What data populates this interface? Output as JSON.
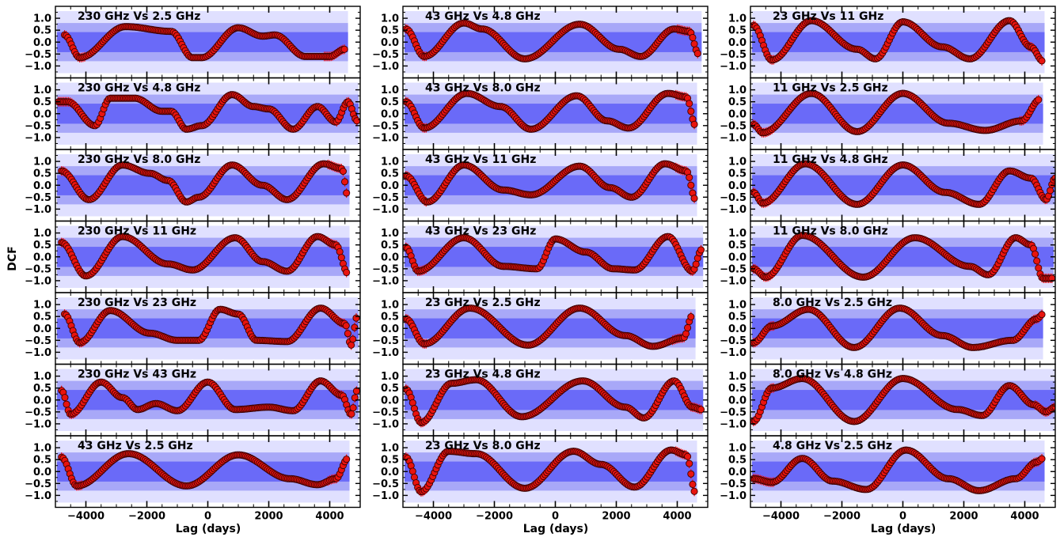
{
  "chart_data": {
    "type": "scatter",
    "ylabel": "DCF",
    "xlabel": "Lag (days)",
    "xlim": [
      -5000,
      5000
    ],
    "ylim": [
      -1.5,
      1.5
    ],
    "xticks": [
      -4000,
      -2000,
      0,
      2000,
      4000
    ],
    "xtick_labels": [
      "−4000",
      "−2000",
      "0",
      "2000",
      "4000"
    ],
    "yticks": [
      1.0,
      0.5,
      0.0,
      -0.5,
      -1.0
    ],
    "ytick_labels": [
      "1.0",
      "0.5",
      "0.0",
      "−0.5",
      "−1.0"
    ],
    "layout": "7 rows × 3 columns",
    "colors": {
      "marker_fill": "#e8140f",
      "marker_edge": "#3a0000",
      "errorbar": "#ff0000",
      "band_outer": "#e0e0ff",
      "band_middle": "#a8a8f8",
      "band_inner": "#6a6af8"
    },
    "panels": [
      {
        "title": "230 GHz Vs 2.5 GHz",
        "peaks": [
          [
            -4700,
            0.3
          ],
          [
            -4200,
            -0.65
          ],
          [
            -2700,
            0.65
          ],
          [
            -1200,
            0.45
          ],
          [
            -500,
            -0.65
          ],
          [
            -200,
            -0.65
          ],
          [
            1000,
            0.6
          ],
          [
            1800,
            0.25
          ],
          [
            2200,
            0.3
          ],
          [
            3200,
            -0.6
          ],
          [
            4000,
            -0.6
          ],
          [
            4500,
            -0.3
          ]
        ],
        "xmax": 4600
      },
      {
        "title": "230 GHz Vs 4.8 GHz",
        "peaks": [
          [
            -4900,
            0.5
          ],
          [
            -4600,
            0.5
          ],
          [
            -3700,
            -0.5
          ],
          [
            -3200,
            0.65
          ],
          [
            -2400,
            0.65
          ],
          [
            -1500,
            0.1
          ],
          [
            -1200,
            0.1
          ],
          [
            -700,
            -0.65
          ],
          [
            -200,
            -0.5
          ],
          [
            800,
            0.8
          ],
          [
            1500,
            0.3
          ],
          [
            2000,
            0.2
          ],
          [
            2800,
            -0.65
          ],
          [
            3600,
            0.3
          ],
          [
            4200,
            -0.35
          ],
          [
            4600,
            0.5
          ],
          [
            4900,
            -0.3
          ]
        ],
        "xmax": 4950
      },
      {
        "title": "230 GHz Vs 8.0 GHz",
        "peaks": [
          [
            -4800,
            0.6
          ],
          [
            -3900,
            -0.6
          ],
          [
            -2800,
            0.85
          ],
          [
            -1900,
            0.5
          ],
          [
            -1300,
            0.2
          ],
          [
            -700,
            -0.7
          ],
          [
            -300,
            -0.5
          ],
          [
            800,
            0.85
          ],
          [
            1800,
            0.0
          ],
          [
            2600,
            -0.6
          ],
          [
            3800,
            0.9
          ],
          [
            4400,
            0.7
          ],
          [
            4600,
            -0.5
          ]
        ],
        "xmax": 4650
      },
      {
        "title": "230 GHz Vs 11 GHz",
        "peaks": [
          [
            -4800,
            0.6
          ],
          [
            -4000,
            -0.8
          ],
          [
            -2800,
            0.85
          ],
          [
            -1300,
            -0.3
          ],
          [
            -500,
            -0.55
          ],
          [
            900,
            0.8
          ],
          [
            1800,
            -0.2
          ],
          [
            2600,
            -0.6
          ],
          [
            3600,
            0.85
          ],
          [
            4200,
            0.5
          ],
          [
            4600,
            -0.7
          ]
        ],
        "xmax": 4650
      },
      {
        "title": "230 GHz Vs 23 GHz",
        "peaks": [
          [
            -4700,
            0.6
          ],
          [
            -4200,
            -0.6
          ],
          [
            -3200,
            0.75
          ],
          [
            -1900,
            -0.2
          ],
          [
            -1000,
            -0.5
          ],
          [
            -300,
            -0.5
          ],
          [
            400,
            0.8
          ],
          [
            1000,
            0.6
          ],
          [
            1600,
            -0.5
          ],
          [
            2600,
            -0.55
          ],
          [
            3700,
            0.85
          ],
          [
            4500,
            0.2
          ],
          [
            4700,
            -0.7
          ],
          [
            4900,
            0.5
          ]
        ],
        "xmax": 4950
      },
      {
        "title": "230 GHz Vs 43 GHz",
        "peaks": [
          [
            -4800,
            0.4
          ],
          [
            -4500,
            -0.6
          ],
          [
            -3500,
            0.75
          ],
          [
            -2800,
            0.1
          ],
          [
            -2300,
            -0.4
          ],
          [
            -1700,
            -0.15
          ],
          [
            -1000,
            -0.45
          ],
          [
            0,
            0.75
          ],
          [
            900,
            -0.4
          ],
          [
            2000,
            -0.3
          ],
          [
            2800,
            -0.45
          ],
          [
            3700,
            0.8
          ],
          [
            4400,
            0.2
          ],
          [
            4700,
            -0.6
          ],
          [
            4900,
            0.4
          ]
        ],
        "xmax": 4950
      },
      {
        "title": "43 GHz Vs 2.5 GHz",
        "peaks": [
          [
            -4800,
            0.6
          ],
          [
            -4300,
            -0.6
          ],
          [
            -2600,
            0.75
          ],
          [
            -700,
            -0.6
          ],
          [
            1000,
            0.7
          ],
          [
            2700,
            -0.3
          ],
          [
            3600,
            -0.55
          ],
          [
            4200,
            -0.3
          ],
          [
            4600,
            0.55
          ]
        ],
        "xmax": 4650
      },
      {
        "title": "43 GHz Vs 4.8 GHz",
        "peaks": [
          [
            -4900,
            0.55
          ],
          [
            -4300,
            -0.6
          ],
          [
            -3000,
            0.8
          ],
          [
            -2400,
            0.55
          ],
          [
            -1000,
            -0.7
          ],
          [
            800,
            0.75
          ],
          [
            2100,
            -0.3
          ],
          [
            2800,
            -0.6
          ],
          [
            3900,
            0.55
          ],
          [
            4400,
            0.45
          ],
          [
            4700,
            -0.5
          ]
        ],
        "xmax": 4800
      },
      {
        "title": "43 GHz Vs 8.0 GHz",
        "peaks": [
          [
            -4900,
            0.5
          ],
          [
            -4300,
            -0.6
          ],
          [
            -2900,
            0.85
          ],
          [
            -1800,
            0.3
          ],
          [
            -800,
            -0.65
          ],
          [
            700,
            0.75
          ],
          [
            1700,
            -0.3
          ],
          [
            2400,
            -0.6
          ],
          [
            3700,
            0.85
          ],
          [
            4300,
            0.7
          ],
          [
            4600,
            -0.5
          ]
        ],
        "xmax": 4650
      },
      {
        "title": "43 GHz Vs 11 GHz",
        "peaks": [
          [
            -4900,
            0.4
          ],
          [
            -4200,
            -0.7
          ],
          [
            -3000,
            0.85
          ],
          [
            -1700,
            -0.2
          ],
          [
            -800,
            -0.4
          ],
          [
            800,
            0.8
          ],
          [
            1800,
            -0.1
          ],
          [
            2500,
            -0.5
          ],
          [
            3600,
            0.9
          ],
          [
            4300,
            0.6
          ],
          [
            4600,
            -0.6
          ]
        ],
        "xmax": 4650
      },
      {
        "title": "43 GHz Vs 23 GHz",
        "peaks": [
          [
            -4900,
            0.4
          ],
          [
            -4500,
            -0.6
          ],
          [
            -3000,
            0.8
          ],
          [
            -1700,
            -0.4
          ],
          [
            -600,
            -0.5
          ],
          [
            0,
            0.75
          ],
          [
            1000,
            0.2
          ],
          [
            1900,
            -0.5
          ],
          [
            2600,
            -0.55
          ],
          [
            3700,
            0.85
          ],
          [
            4500,
            -0.6
          ],
          [
            4800,
            0.3
          ]
        ],
        "xmax": 4850
      },
      {
        "title": "23 GHz Vs 2.5 GHz",
        "peaks": [
          [
            -4900,
            0.4
          ],
          [
            -4300,
            -0.65
          ],
          [
            -2800,
            0.85
          ],
          [
            -900,
            -0.7
          ],
          [
            800,
            0.85
          ],
          [
            2300,
            -0.3
          ],
          [
            3200,
            -0.75
          ],
          [
            4200,
            -0.4
          ],
          [
            4500,
            0.55
          ]
        ],
        "xmax": 4600
      },
      {
        "title": "23 GHz Vs 4.8 GHz",
        "peaks": [
          [
            -4900,
            0.45
          ],
          [
            -4400,
            -0.95
          ],
          [
            -3400,
            0.7
          ],
          [
            -2600,
            0.85
          ],
          [
            -1100,
            -0.7
          ],
          [
            900,
            0.8
          ],
          [
            2300,
            -0.3
          ],
          [
            2900,
            -0.75
          ],
          [
            3900,
            0.8
          ],
          [
            4500,
            -0.3
          ],
          [
            4800,
            -0.4
          ]
        ],
        "xmax": 4850
      },
      {
        "title": "23 GHz Vs 8.0 GHz",
        "peaks": [
          [
            -4900,
            0.6
          ],
          [
            -4400,
            -0.85
          ],
          [
            -3500,
            0.85
          ],
          [
            -2600,
            0.75
          ],
          [
            -1000,
            -0.7
          ],
          [
            600,
            0.85
          ],
          [
            1500,
            0.3
          ],
          [
            2600,
            -0.65
          ],
          [
            3800,
            0.9
          ],
          [
            4300,
            0.7
          ],
          [
            4600,
            -0.9
          ]
        ],
        "xmax": 4650
      },
      {
        "title": "23 GHz Vs 11 GHz",
        "peaks": [
          [
            -4900,
            0.7
          ],
          [
            -4300,
            -0.75
          ],
          [
            -3000,
            0.9
          ],
          [
            -1500,
            -0.3
          ],
          [
            -900,
            -0.7
          ],
          [
            0,
            0.85
          ],
          [
            1300,
            -0.2
          ],
          [
            2200,
            -0.7
          ],
          [
            3500,
            0.9
          ],
          [
            4200,
            -0.2
          ],
          [
            4600,
            -0.8
          ]
        ],
        "xmax": 4650
      },
      {
        "title": "11 GHz Vs 2.5 GHz",
        "peaks": [
          [
            -4900,
            -0.45
          ],
          [
            -4600,
            -0.8
          ],
          [
            -3000,
            0.85
          ],
          [
            -1500,
            -0.75
          ],
          [
            0,
            0.85
          ],
          [
            1500,
            -0.4
          ],
          [
            2700,
            -0.7
          ],
          [
            3900,
            -0.3
          ],
          [
            4500,
            0.6
          ]
        ],
        "xmax": 4600
      },
      {
        "title": "11 GHz Vs 4.8 GHz",
        "peaks": [
          [
            -4900,
            -0.3
          ],
          [
            -4600,
            -0.75
          ],
          [
            -3200,
            0.9
          ],
          [
            -1500,
            -0.8
          ],
          [
            0,
            0.85
          ],
          [
            1400,
            -0.3
          ],
          [
            2500,
            -0.8
          ],
          [
            3500,
            0.6
          ],
          [
            4200,
            0.3
          ],
          [
            4700,
            -0.6
          ],
          [
            5000,
            0.3
          ]
        ],
        "xmax": 5000
      },
      {
        "title": "11 GHz Vs 8.0 GHz",
        "peaks": [
          [
            -4900,
            -0.5
          ],
          [
            -4500,
            -0.85
          ],
          [
            -3300,
            0.9
          ],
          [
            -1300,
            -0.85
          ],
          [
            400,
            0.8
          ],
          [
            2200,
            -0.4
          ],
          [
            2800,
            -0.75
          ],
          [
            3700,
            0.8
          ],
          [
            4200,
            0.5
          ],
          [
            4600,
            -0.9
          ],
          [
            4900,
            -0.9
          ]
        ],
        "xmax": 4950
      },
      {
        "title": "8.0 GHz Vs 2.5 GHz",
        "peaks": [
          [
            -4900,
            -0.6
          ],
          [
            -4300,
            0.1
          ],
          [
            -3100,
            0.8
          ],
          [
            -1600,
            -0.8
          ],
          [
            -100,
            0.85
          ],
          [
            1300,
            -0.3
          ],
          [
            2300,
            -0.8
          ],
          [
            3600,
            -0.5
          ],
          [
            4400,
            0.4
          ],
          [
            4600,
            0.6
          ]
        ],
        "xmax": 4600
      },
      {
        "title": "8.0 GHz Vs 4.8 GHz",
        "peaks": [
          [
            -4900,
            -0.9
          ],
          [
            -4300,
            0.5
          ],
          [
            -3300,
            0.9
          ],
          [
            -1600,
            -0.9
          ],
          [
            0,
            0.9
          ],
          [
            1800,
            -0.4
          ],
          [
            2600,
            -0.65
          ],
          [
            3500,
            0.6
          ],
          [
            4300,
            -0.2
          ],
          [
            4700,
            -0.5
          ],
          [
            5000,
            -0.3
          ]
        ],
        "xmax": 5000
      },
      {
        "title": "4.8 GHz Vs 2.5 GHz",
        "peaks": [
          [
            -4900,
            -0.3
          ],
          [
            -4300,
            -0.45
          ],
          [
            -3300,
            0.55
          ],
          [
            -2300,
            -0.4
          ],
          [
            -1200,
            -0.75
          ],
          [
            100,
            0.9
          ],
          [
            1500,
            -0.3
          ],
          [
            2500,
            -0.8
          ],
          [
            3700,
            -0.3
          ],
          [
            4400,
            0.4
          ],
          [
            4600,
            0.55
          ]
        ],
        "xmax": 4650
      }
    ]
  }
}
